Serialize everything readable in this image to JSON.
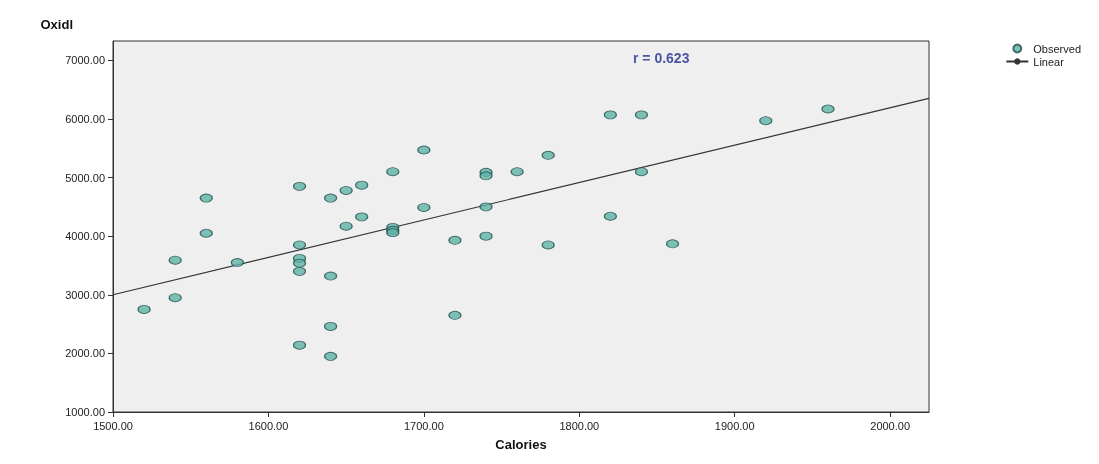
{
  "chart_data": {
    "type": "scatter",
    "xlabel": "Calories",
    "ylabel": "Oxidl",
    "annotations": [
      "r = 0.623"
    ],
    "xlim": [
      1500,
      2025
    ],
    "ylim": [
      1000,
      7330
    ],
    "xticks": [
      {
        "value": 1500,
        "label": "1500.00"
      },
      {
        "value": 1600,
        "label": "1600.00"
      },
      {
        "value": 1700,
        "label": "1700.00"
      },
      {
        "value": 1800,
        "label": "1800.00"
      },
      {
        "value": 1900,
        "label": "1900.00"
      },
      {
        "value": 2000,
        "label": "2000.00"
      }
    ],
    "yticks": [
      {
        "value": 1000,
        "label": "1000.00"
      },
      {
        "value": 2000,
        "label": "2000.00"
      },
      {
        "value": 3000,
        "label": "3000.00"
      },
      {
        "value": 4000,
        "label": "4000.00"
      },
      {
        "value": 5000,
        "label": "5000.00"
      },
      {
        "value": 6000,
        "label": "6000.00"
      },
      {
        "value": 7000,
        "label": "7000.00"
      }
    ],
    "grid": false,
    "legend": "top right",
    "series": [
      {
        "name": "Observed",
        "marker": "circle",
        "color": "#5fb3a8",
        "x": [
          1520,
          1540,
          1540,
          1560,
          1560,
          1580,
          1620,
          1620,
          1620,
          1620,
          1620,
          1620,
          1640,
          1640,
          1640,
          1640,
          1650,
          1650,
          1660,
          1660,
          1680,
          1680,
          1680,
          1680,
          1700,
          1700,
          1720,
          1720,
          1740,
          1740,
          1740,
          1740,
          1760,
          1780,
          1780,
          1820,
          1820,
          1840,
          1840,
          1860,
          1920,
          1960
        ],
        "values": [
          2750,
          3590,
          2950,
          4650,
          4050,
          3550,
          4850,
          3850,
          3620,
          3540,
          3400,
          2140,
          4650,
          3320,
          2460,
          1950,
          4780,
          4170,
          4870,
          4330,
          5100,
          4150,
          4100,
          4060,
          5470,
          4490,
          3930,
          2650,
          5090,
          5030,
          4500,
          4000,
          5100,
          5380,
          3850,
          6070,
          4340,
          6070,
          5100,
          3870,
          5970,
          6170
        ]
      },
      {
        "name": "Linear",
        "type": "line",
        "color": "#333333",
        "marker": "none",
        "line_style": "solid",
        "x": [
          1500,
          2025
        ],
        "values": [
          3000,
          6350
        ]
      }
    ]
  }
}
